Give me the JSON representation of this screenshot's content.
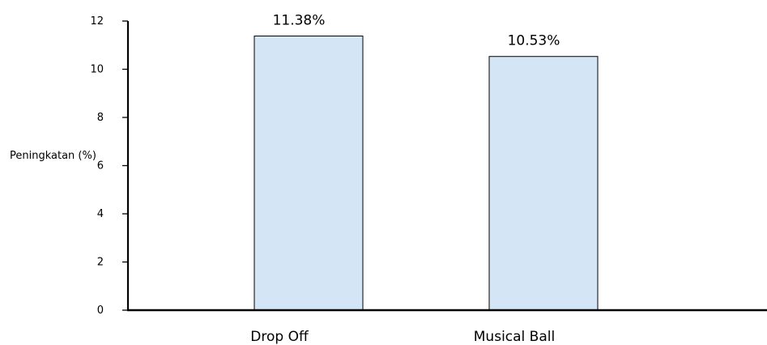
{
  "chart_data": {
    "type": "bar",
    "categories": [
      "Drop Off",
      "Musical Ball"
    ],
    "values": [
      11.38,
      10.53
    ],
    "value_labels": [
      "11.38%",
      "10.53%"
    ],
    "ylabel": "Peningkatan (%)",
    "xlabel": "",
    "ylim": [
      0,
      12
    ],
    "yticks": [
      0,
      2,
      4,
      6,
      8,
      10,
      12
    ],
    "grid": false,
    "legend": "none",
    "colors": {
      "bar_fill": "#d4e6f5",
      "bar_stroke": "#000000",
      "axis": "#000000"
    }
  }
}
